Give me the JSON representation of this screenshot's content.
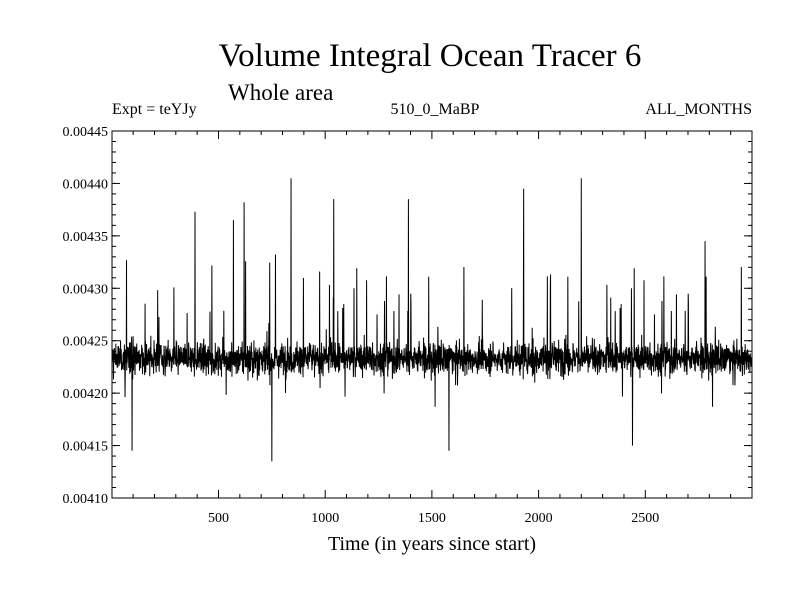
{
  "chart_data": {
    "type": "line",
    "title": "Volume Integral Ocean Tracer 6",
    "subtitle": "Whole area",
    "experiment": "Expt = teYJy",
    "period": "510_0_MaBP",
    "season": "ALL_MONTHS",
    "xlabel": "Time (in years since start)",
    "ylabel": "",
    "xlim": [
      1,
      3000
    ],
    "ylim": [
      0.0041,
      0.00445
    ],
    "xticks": [
      500,
      1000,
      1500,
      2000,
      2500
    ],
    "xtick_labels": [
      "500",
      "1000",
      "1500",
      "2000",
      "2500"
    ],
    "yticks": [
      0.0041,
      0.00415,
      0.0042,
      0.00425,
      0.0043,
      0.00435,
      0.0044,
      0.00445
    ],
    "ytick_labels": [
      "0.00410",
      "0.00415",
      "0.00420",
      "0.00425",
      "0.00430",
      "0.00435",
      "0.00440",
      "0.00445"
    ],
    "series": [
      {
        "name": "Tracer 6 volume integral",
        "description_stats": {
          "mean": 0.004233,
          "approx_min": 0.004135,
          "approx_max": 0.004405
        },
        "peaks": [
          {
            "x": 390,
            "y": 0.004373
          },
          {
            "x": 570,
            "y": 0.004365
          },
          {
            "x": 620,
            "y": 0.004382
          },
          {
            "x": 840,
            "y": 0.004405
          },
          {
            "x": 1040,
            "y": 0.004385
          },
          {
            "x": 1390,
            "y": 0.004385
          },
          {
            "x": 1930,
            "y": 0.004395
          },
          {
            "x": 2200,
            "y": 0.004405
          },
          {
            "x": 2780,
            "y": 0.004345
          }
        ],
        "troughs": [
          {
            "x": 95,
            "y": 0.004145
          },
          {
            "x": 750,
            "y": 0.004135
          },
          {
            "x": 1580,
            "y": 0.004145
          },
          {
            "x": 2440,
            "y": 0.00415
          }
        ]
      }
    ]
  }
}
